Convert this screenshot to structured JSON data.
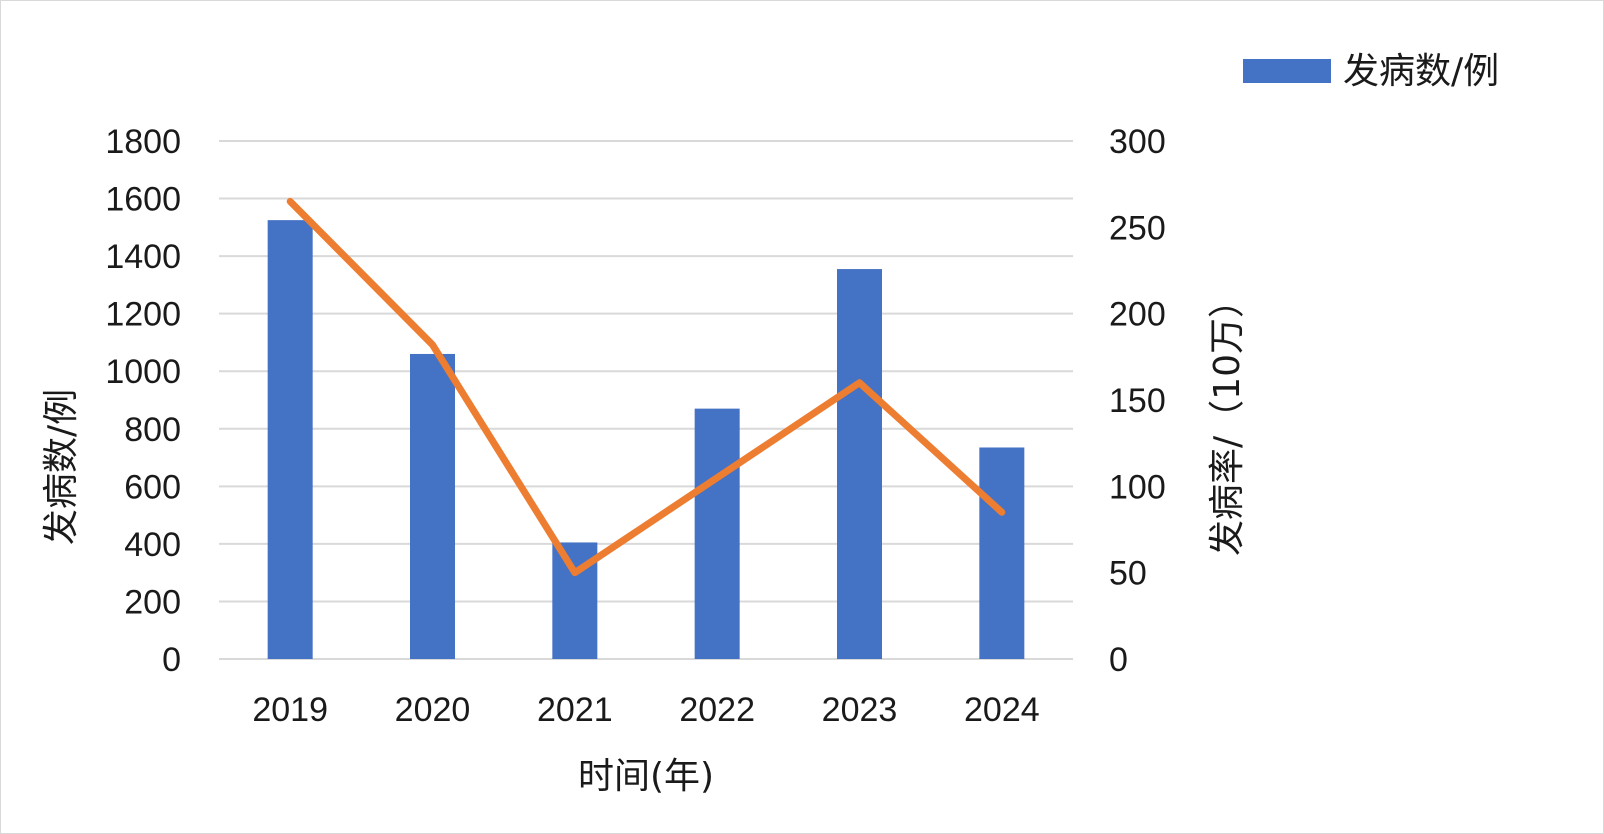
{
  "chart_data": {
    "type": "bar+line",
    "categories": [
      "2019",
      "2020",
      "2021",
      "2022",
      "2023",
      "2024"
    ],
    "series": [
      {
        "name": "发病数/例",
        "type": "bar",
        "axis": "left",
        "color": "#4472C4",
        "values": [
          1525,
          1060,
          405,
          870,
          1355,
          735
        ]
      },
      {
        "type": "line",
        "axis": "right",
        "color": "#ED7D31",
        "values": [
          265,
          182,
          50,
          105,
          160,
          85
        ]
      }
    ],
    "xlabel": "时间(年)",
    "ylabel_left": "发病数/例",
    "ylabel_right": "发病率/（10万）",
    "ylim_left": [
      0,
      1800
    ],
    "yticks_left": [
      "0",
      "200",
      "400",
      "600",
      "800",
      "1000",
      "1200",
      "1400",
      "1600",
      "1800"
    ],
    "ylim_right": [
      0,
      300
    ],
    "yticks_right": [
      "0",
      "50",
      "100",
      "150",
      "200",
      "250",
      "300"
    ],
    "grid": true,
    "legend_position": "top-right"
  }
}
